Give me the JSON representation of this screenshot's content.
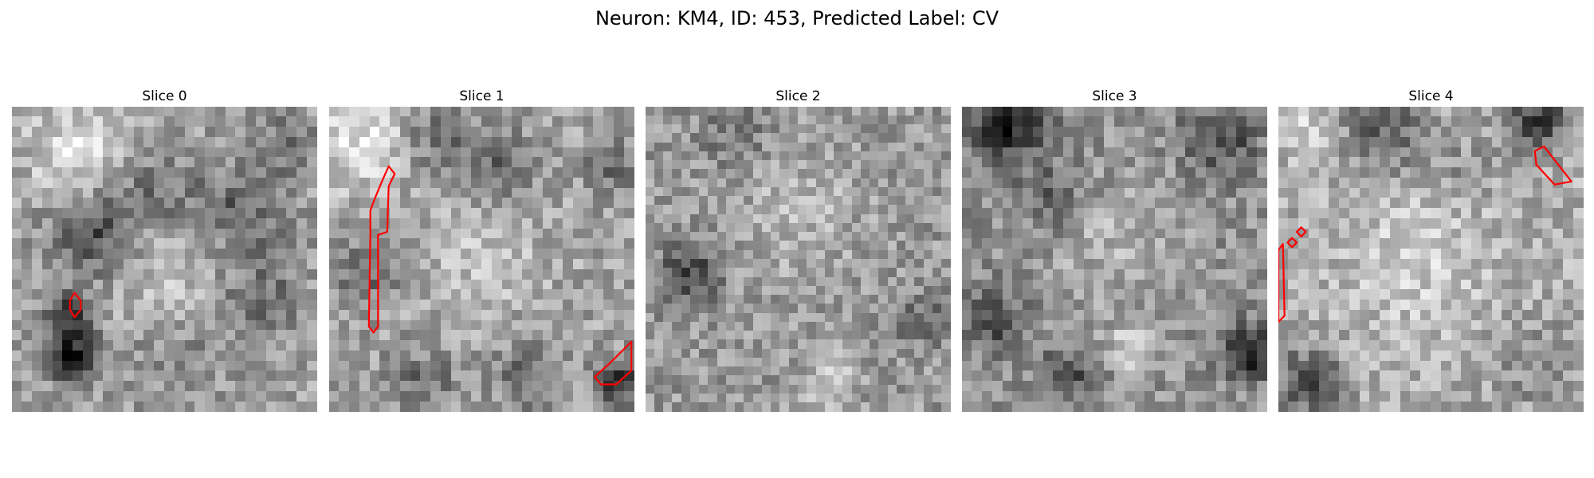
{
  "figure": {
    "title": "Neuron: KM4, ID: 453, Predicted Label: CV"
  },
  "panels": [
    {
      "title": "Slice 0",
      "grid": 30,
      "seed": 11,
      "base": 0.63,
      "blobs": [
        [
          0.22,
          0.15,
          0.12,
          0.25
        ],
        [
          0.25,
          0.42,
          0.09,
          -0.35
        ],
        [
          0.45,
          0.28,
          0.1,
          -0.2
        ],
        [
          0.75,
          0.33,
          0.1,
          -0.25
        ],
        [
          0.82,
          0.62,
          0.09,
          -0.2
        ],
        [
          0.5,
          0.55,
          0.12,
          0.12
        ],
        [
          0.2,
          0.82,
          0.06,
          -0.55
        ],
        [
          0.18,
          0.68,
          0.05,
          -0.45
        ],
        [
          0.9,
          0.12,
          0.06,
          -0.2
        ],
        [
          0.55,
          0.82,
          0.1,
          -0.1
        ]
      ],
      "contours": [
        [
          [
            0.205,
            0.61
          ],
          [
            0.225,
            0.635
          ],
          [
            0.225,
            0.665
          ],
          [
            0.205,
            0.69
          ],
          [
            0.19,
            0.665
          ],
          [
            0.19,
            0.635
          ]
        ]
      ]
    },
    {
      "title": "Slice 1",
      "grid": 30,
      "seed": 23,
      "base": 0.64,
      "blobs": [
        [
          0.1,
          0.1,
          0.12,
          0.25
        ],
        [
          0.35,
          0.1,
          0.08,
          -0.2
        ],
        [
          0.55,
          0.18,
          0.08,
          -0.25
        ],
        [
          0.12,
          0.55,
          0.07,
          -0.25
        ],
        [
          0.5,
          0.5,
          0.14,
          0.12
        ],
        [
          0.65,
          0.88,
          0.08,
          -0.2
        ],
        [
          0.95,
          0.9,
          0.05,
          -0.5
        ],
        [
          0.92,
          0.2,
          0.06,
          -0.2
        ],
        [
          0.3,
          0.9,
          0.08,
          -0.2
        ]
      ],
      "contours": [
        [
          [
            0.19,
            0.41
          ],
          [
            0.195,
            0.26
          ],
          [
            0.215,
            0.22
          ],
          [
            0.195,
            0.195
          ],
          [
            0.175,
            0.24
          ],
          [
            0.15,
            0.3
          ],
          [
            0.135,
            0.34
          ],
          [
            0.135,
            0.42
          ],
          [
            0.13,
            0.72
          ],
          [
            0.145,
            0.74
          ],
          [
            0.16,
            0.72
          ],
          [
            0.16,
            0.42
          ]
        ],
        [
          [
            0.99,
            0.77
          ],
          [
            0.92,
            0.84
          ],
          [
            0.87,
            0.885
          ],
          [
            0.89,
            0.91
          ],
          [
            0.94,
            0.91
          ],
          [
            0.99,
            0.865
          ]
        ]
      ]
    },
    {
      "title": "Slice 2",
      "grid": 34,
      "seed": 37,
      "base": 0.6,
      "blobs": [
        [
          0.5,
          0.35,
          0.15,
          0.12
        ],
        [
          0.15,
          0.55,
          0.07,
          -0.35
        ],
        [
          0.6,
          0.9,
          0.06,
          0.2
        ],
        [
          0.9,
          0.7,
          0.06,
          -0.2
        ],
        [
          0.3,
          0.1,
          0.08,
          -0.15
        ]
      ],
      "contours": []
    },
    {
      "title": "Slice 3",
      "grid": 30,
      "seed": 51,
      "base": 0.57,
      "blobs": [
        [
          0.15,
          0.05,
          0.09,
          -0.45
        ],
        [
          0.85,
          0.1,
          0.08,
          -0.3
        ],
        [
          0.5,
          0.45,
          0.15,
          0.12
        ],
        [
          0.1,
          0.7,
          0.07,
          -0.3
        ],
        [
          0.95,
          0.8,
          0.06,
          -0.5
        ],
        [
          0.55,
          0.8,
          0.06,
          0.25
        ],
        [
          0.3,
          0.3,
          0.07,
          -0.2
        ],
        [
          0.35,
          0.88,
          0.07,
          -0.25
        ]
      ],
      "contours": []
    },
    {
      "title": "Slice 4",
      "grid": 30,
      "seed": 67,
      "base": 0.68,
      "blobs": [
        [
          0.35,
          0.08,
          0.1,
          -0.3
        ],
        [
          0.85,
          0.05,
          0.07,
          -0.45
        ],
        [
          0.1,
          0.06,
          0.07,
          0.15
        ],
        [
          0.45,
          0.5,
          0.16,
          0.14
        ],
        [
          0.1,
          0.9,
          0.08,
          -0.35
        ],
        [
          0.85,
          0.85,
          0.1,
          -0.15
        ],
        [
          0.6,
          0.2,
          0.08,
          -0.1
        ]
      ],
      "contours": [
        [
          [
            0.87,
            0.13
          ],
          [
            0.96,
            0.245
          ],
          [
            0.905,
            0.255
          ],
          [
            0.845,
            0.19
          ],
          [
            0.84,
            0.145
          ]
        ],
        [
          [
            0.075,
            0.395
          ],
          [
            0.09,
            0.41
          ],
          [
            0.075,
            0.425
          ],
          [
            0.06,
            0.41
          ]
        ],
        [
          [
            0.045,
            0.43
          ],
          [
            0.06,
            0.445
          ],
          [
            0.045,
            0.46
          ],
          [
            0.03,
            0.445
          ]
        ],
        [
          [
            0.015,
            0.45
          ],
          [
            0.02,
            0.685
          ],
          [
            0.0,
            0.705
          ],
          [
            0.0,
            0.47
          ]
        ]
      ]
    }
  ],
  "colors": {
    "contour": "#ff0000"
  }
}
